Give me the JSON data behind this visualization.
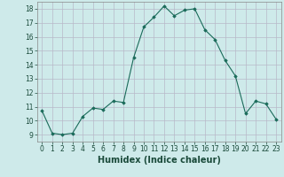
{
  "x": [
    0,
    1,
    2,
    3,
    4,
    5,
    6,
    7,
    8,
    9,
    10,
    11,
    12,
    13,
    14,
    15,
    16,
    17,
    18,
    19,
    20,
    21,
    22,
    23
  ],
  "y": [
    10.7,
    9.1,
    9.0,
    9.1,
    10.3,
    10.9,
    10.8,
    11.4,
    11.3,
    14.5,
    16.7,
    17.4,
    18.2,
    17.5,
    17.9,
    18.0,
    16.5,
    15.8,
    14.3,
    13.2,
    10.5,
    11.4,
    11.2,
    10.1
  ],
  "line_color": "#1a6b5a",
  "marker": "D",
  "marker_size": 1.8,
  "bg_color": "#ceeaea",
  "grid_color": "#b8b8c8",
  "xlabel": "Humidex (Indice chaleur)",
  "xlim": [
    -0.5,
    23.5
  ],
  "ylim": [
    8.5,
    18.5
  ],
  "yticks": [
    9,
    10,
    11,
    12,
    13,
    14,
    15,
    16,
    17,
    18
  ],
  "xticks": [
    0,
    1,
    2,
    3,
    4,
    5,
    6,
    7,
    8,
    9,
    10,
    11,
    12,
    13,
    14,
    15,
    16,
    17,
    18,
    19,
    20,
    21,
    22,
    23
  ],
  "tick_fontsize": 5.5,
  "xlabel_fontsize": 7
}
